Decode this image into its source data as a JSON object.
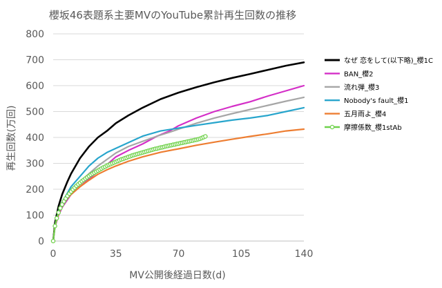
{
  "chart_data": {
    "type": "line",
    "title": "櫻坂46表題系主要MVのYouTube累計再生回数の推移",
    "xlabel": "MV公開後経過日数(d)",
    "ylabel": "再生回数(万回)",
    "xlim": [
      0,
      140
    ],
    "ylim": [
      0,
      800
    ],
    "xticks": [
      0,
      35,
      70,
      105,
      140
    ],
    "yticks": [
      0,
      100,
      200,
      300,
      400,
      500,
      600,
      700,
      800
    ],
    "grid": true,
    "legend_position": "right",
    "series": [
      {
        "name": "なぜ 恋をして(以下略)_櫻1C",
        "color": "#000000",
        "marker": "none",
        "x": [
          0,
          1,
          3,
          5,
          8,
          10,
          15,
          20,
          25,
          30,
          35,
          42,
          50,
          60,
          70,
          80,
          90,
          100,
          110,
          120,
          130,
          140
        ],
        "y": [
          0,
          70,
          135,
          180,
          230,
          260,
          320,
          365,
          400,
          425,
          455,
          485,
          515,
          548,
          573,
          594,
          613,
          630,
          645,
          661,
          677,
          690
        ]
      },
      {
        "name": "BAN_櫻2",
        "color": "#d42ec7",
        "marker": "none",
        "x": [
          0,
          1,
          3,
          5,
          8,
          10,
          15,
          20,
          25,
          30,
          35,
          42,
          50,
          58,
          65,
          70,
          80,
          90,
          100,
          110,
          120,
          130,
          140
        ],
        "y": [
          0,
          55,
          100,
          130,
          160,
          180,
          210,
          240,
          268,
          295,
          325,
          350,
          375,
          405,
          425,
          445,
          475,
          500,
          520,
          538,
          560,
          580,
          600
        ]
      },
      {
        "name": "流れ弾_櫻3",
        "color": "#a6a6a6",
        "marker": "none",
        "x": [
          0,
          1,
          3,
          5,
          8,
          10,
          15,
          20,
          25,
          30,
          35,
          42,
          50,
          58,
          65,
          70,
          80,
          90,
          100,
          110,
          120,
          130,
          140
        ],
        "y": [
          0,
          55,
          105,
          140,
          170,
          190,
          230,
          260,
          290,
          315,
          340,
          365,
          385,
          405,
          420,
          432,
          455,
          475,
          492,
          508,
          524,
          540,
          555
        ]
      },
      {
        "name": "Nobody's fault_櫻1",
        "color": "#27a5cc",
        "marker": "none",
        "x": [
          0,
          1,
          3,
          5,
          8,
          10,
          15,
          20,
          25,
          30,
          35,
          42,
          50,
          60,
          70,
          80,
          90,
          100,
          110,
          120,
          130,
          140
        ],
        "y": [
          0,
          60,
          115,
          150,
          185,
          210,
          250,
          290,
          320,
          342,
          358,
          380,
          405,
          425,
          436,
          447,
          457,
          467,
          475,
          485,
          500,
          515
        ]
      },
      {
        "name": "五月雨よ_櫻4",
        "color": "#ed7d31",
        "marker": "none",
        "x": [
          0,
          1,
          3,
          5,
          8,
          10,
          15,
          20,
          25,
          30,
          35,
          42,
          50,
          60,
          70,
          80,
          90,
          100,
          110,
          120,
          130,
          140
        ],
        "y": [
          0,
          60,
          105,
          140,
          165,
          180,
          210,
          235,
          258,
          275,
          290,
          308,
          325,
          343,
          356,
          370,
          382,
          393,
          404,
          414,
          425,
          432
        ]
      },
      {
        "name": "摩擦係数_櫻1stAb",
        "color": "#6fd14b",
        "marker": "circle",
        "x": [
          0,
          1,
          2,
          3,
          4,
          5,
          6,
          7,
          8,
          9,
          10,
          11,
          12,
          13,
          14,
          15,
          16,
          17,
          18,
          19,
          20,
          21,
          22,
          23,
          24,
          25,
          26,
          27,
          28,
          29,
          30,
          31,
          32,
          33,
          34,
          35,
          36,
          37,
          38,
          39,
          40,
          41,
          42,
          43,
          44,
          45,
          46,
          47,
          48,
          49,
          50,
          51,
          52,
          53,
          54,
          55,
          56,
          57,
          58,
          59,
          60,
          61,
          62,
          63,
          64,
          65,
          66,
          67,
          68,
          69,
          70,
          71,
          72,
          73,
          74,
          75,
          76,
          77,
          78,
          79,
          80,
          81,
          82,
          83,
          84,
          85
        ],
        "y": [
          0,
          58,
          88,
          110,
          127,
          141,
          153,
          164,
          174,
          183,
          191,
          199,
          206,
          213,
          219,
          225,
          231,
          236,
          241,
          246,
          251,
          256,
          260,
          264,
          268,
          272,
          276,
          280,
          284,
          287,
          291,
          294,
          297,
          300,
          303,
          306,
          309,
          312,
          315,
          317,
          320,
          322,
          325,
          327,
          330,
          332,
          334,
          336,
          338,
          340,
          342,
          344,
          346,
          348,
          350,
          352,
          354,
          356,
          357,
          359,
          361,
          362,
          364,
          366,
          367,
          369,
          370,
          372,
          373,
          375,
          376,
          378,
          379,
          381,
          382,
          384,
          385,
          387,
          388,
          390,
          391,
          393,
          395,
          398,
          401,
          404
        ]
      }
    ]
  }
}
